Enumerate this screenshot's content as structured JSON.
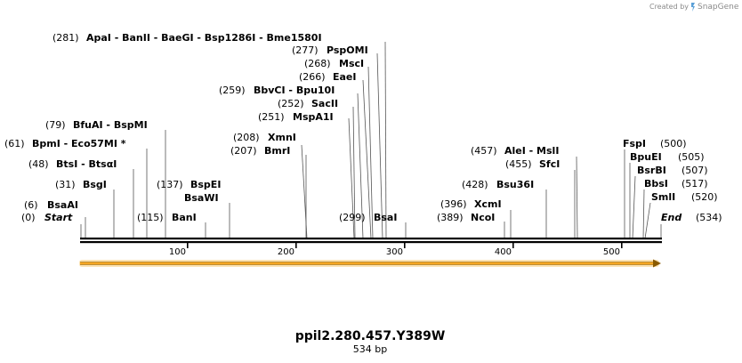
{
  "watermark": {
    "text": "Created by",
    "brand": "SnapGene",
    "logo_icon": "snapgene-logo-icon"
  },
  "sequence": {
    "name": "ppil2.280.457.Y389W",
    "length_label": "534 bp",
    "length_bp": 534
  },
  "ruler_ticks": [
    "100",
    "200",
    "300",
    "400",
    "500"
  ],
  "ends": {
    "start_label": "Start",
    "start_pos": "(0)",
    "end_label": "End",
    "end_pos": "(534)"
  },
  "sites": [
    {
      "pos": "(6)",
      "names": "BsaAI"
    },
    {
      "pos": "(31)",
      "names": "BsgI"
    },
    {
      "pos": "(48)",
      "names": "BtsI  - BtsαI"
    },
    {
      "pos": "(61)",
      "names": "BpmI  - Eco57MI *"
    },
    {
      "pos": "(79)",
      "names": "BfuAI  - BspMI"
    },
    {
      "pos": "(115)",
      "names": "BanI"
    },
    {
      "pos": "(137)",
      "names": "BspEI"
    },
    {
      "pos": "",
      "names": "BsaWI"
    },
    {
      "pos": "(207)",
      "names": "BmrI"
    },
    {
      "pos": "(208)",
      "names": "XmnI"
    },
    {
      "pos": "(251)",
      "names": "MspA1I"
    },
    {
      "pos": "(252)",
      "names": "SacII"
    },
    {
      "pos": "(259)",
      "names": "BbvCI  - Bpu10I"
    },
    {
      "pos": "(266)",
      "names": "EaeI"
    },
    {
      "pos": "(268)",
      "names": "MscI"
    },
    {
      "pos": "(277)",
      "names": "PspOMI"
    },
    {
      "pos": "(281)",
      "names": "ApaI  - BanII  - BaeGI  - Bsp1286I  - Bme1580I"
    },
    {
      "pos": "(299)",
      "names": "BsaI"
    },
    {
      "pos": "(389)",
      "names": "NcoI"
    },
    {
      "pos": "(396)",
      "names": "XcmI"
    },
    {
      "pos": "(428)",
      "names": "Bsu36I"
    },
    {
      "pos": "(455)",
      "names": "SfcI"
    },
    {
      "pos": "(457)",
      "names": "AleI  - MslI"
    },
    {
      "pos": "(500)",
      "names": "FspI"
    },
    {
      "pos": "(505)",
      "names": "BpuEI"
    },
    {
      "pos": "(507)",
      "names": "BsrBI"
    },
    {
      "pos": "(517)",
      "names": "BbsI"
    },
    {
      "pos": "(520)",
      "names": "SmlI"
    }
  ],
  "colors": {
    "feature_fill": "#f5a623",
    "feature_glow": "#fbe3b5",
    "line": "#000000",
    "credit": "#8a8a8a"
  }
}
